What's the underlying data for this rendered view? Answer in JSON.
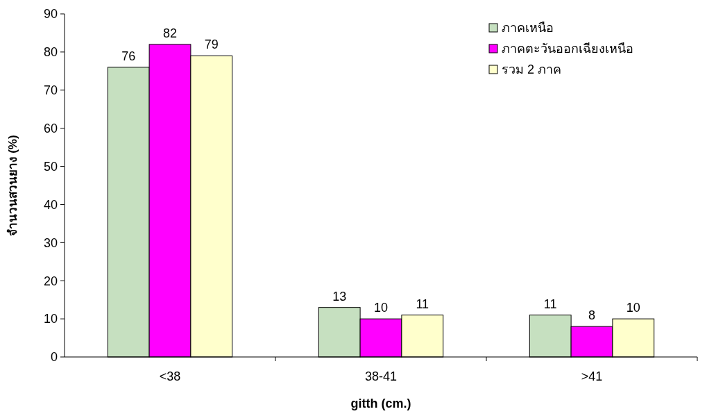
{
  "chart_data": {
    "type": "bar",
    "xlabel": "gitth (cm.)",
    "ylabel": "จำนวนสวนยาง (%)",
    "categories": [
      "<38",
      "38-41",
      ">41"
    ],
    "series": [
      {
        "name": "ภาคเหนือ",
        "color": "#c6e0c0",
        "values": [
          76,
          13,
          11
        ]
      },
      {
        "name": "ภาคตะวันออกเฉียงเหนือ",
        "color": "#ff00ff",
        "values": [
          82,
          10,
          8
        ]
      },
      {
        "name": "รวม 2 ภาค",
        "color": "#ffffcc",
        "values": [
          79,
          11,
          10
        ]
      }
    ],
    "ylim": [
      0,
      90
    ],
    "yticks": [
      0,
      10,
      20,
      30,
      40,
      50,
      60,
      70,
      80,
      90
    ],
    "grid": false,
    "legend": "top right",
    "data_labels": true
  }
}
